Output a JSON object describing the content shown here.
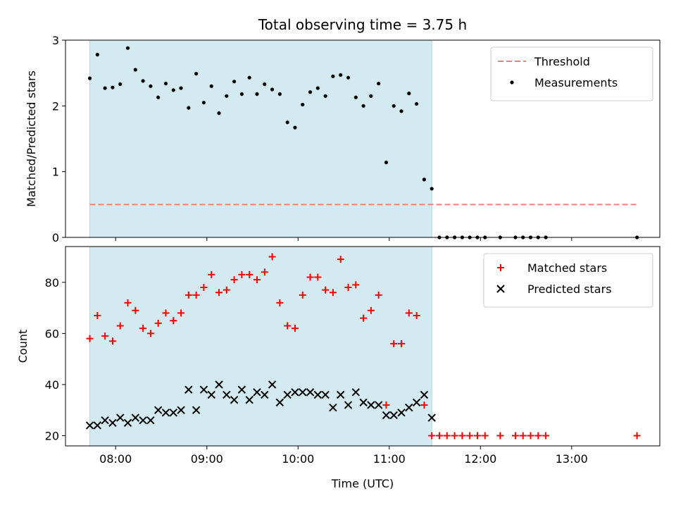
{
  "chart_data": [
    {
      "type": "scatter",
      "title": "Total observing time = 3.75 h",
      "ylabel": "Matched/Predicted stars",
      "xlim": [
        "07:27",
        "13:58"
      ],
      "ylim": [
        0,
        3
      ],
      "yticks": [
        "0",
        "1",
        "2",
        "3"
      ],
      "shaded_range": [
        "07:43",
        "11:28"
      ],
      "shade_color": "#d4eaf1",
      "legend_position": "top-right",
      "series": [
        {
          "name": "Threshold",
          "style": "dashed-line",
          "color": "#f08080",
          "x": [
            "07:43",
            "13:43"
          ],
          "y": [
            0.5,
            0.5
          ]
        },
        {
          "name": "Measurements",
          "style": "dot",
          "color": "#000000",
          "x": [
            "07:43",
            "07:48",
            "07:53",
            "07:58",
            "08:03",
            "08:08",
            "08:13",
            "08:18",
            "08:23",
            "08:28",
            "08:33",
            "08:38",
            "08:43",
            "08:48",
            "08:53",
            "08:58",
            "09:03",
            "09:08",
            "09:13",
            "09:18",
            "09:23",
            "09:28",
            "09:33",
            "09:38",
            "09:43",
            "09:48",
            "09:53",
            "09:58",
            "10:03",
            "10:08",
            "10:13",
            "10:18",
            "10:23",
            "10:28",
            "10:33",
            "10:38",
            "10:43",
            "10:48",
            "10:53",
            "10:58",
            "11:03",
            "11:08",
            "11:13",
            "11:18",
            "11:23",
            "11:28",
            "11:33",
            "11:38",
            "11:43",
            "11:48",
            "11:53",
            "11:58",
            "12:03",
            "12:13",
            "12:23",
            "12:28",
            "12:33",
            "12:38",
            "12:43",
            "13:43"
          ],
          "y": [
            2.42,
            2.78,
            2.27,
            2.28,
            2.33,
            2.88,
            2.55,
            2.38,
            2.3,
            2.13,
            2.34,
            2.24,
            2.27,
            1.97,
            2.49,
            2.05,
            2.3,
            1.89,
            2.15,
            2.37,
            2.18,
            2.43,
            2.18,
            2.33,
            2.25,
            2.18,
            1.75,
            1.67,
            2.02,
            2.21,
            2.27,
            2.15,
            2.45,
            2.47,
            2.43,
            2.13,
            2.0,
            2.15,
            2.34,
            1.14,
            2.0,
            1.92,
            2.19,
            2.03,
            0.88,
            0.74,
            0,
            0,
            0,
            0,
            0,
            0,
            0,
            0,
            0,
            0,
            0,
            0,
            0,
            0
          ]
        }
      ]
    },
    {
      "type": "scatter",
      "ylabel": "Count",
      "xlabel": "Time (UTC)",
      "xlim": [
        "07:27",
        "13:58"
      ],
      "ylim": [
        16,
        94
      ],
      "yticks": [
        "20",
        "40",
        "60",
        "80"
      ],
      "xticks": [
        "08:00",
        "09:00",
        "10:00",
        "11:00",
        "12:00",
        "13:00"
      ],
      "shaded_range": [
        "07:43",
        "11:28"
      ],
      "shade_color": "#d4eaf1",
      "legend_position": "top-right",
      "series": [
        {
          "name": "Matched stars",
          "marker": "plus",
          "color": "#ff0000",
          "x": [
            "07:43",
            "07:48",
            "07:53",
            "07:58",
            "08:03",
            "08:08",
            "08:13",
            "08:18",
            "08:23",
            "08:28",
            "08:33",
            "08:38",
            "08:43",
            "08:48",
            "08:53",
            "08:58",
            "09:03",
            "09:08",
            "09:13",
            "09:18",
            "09:23",
            "09:28",
            "09:33",
            "09:38",
            "09:43",
            "09:48",
            "09:53",
            "09:58",
            "10:03",
            "10:08",
            "10:13",
            "10:18",
            "10:23",
            "10:28",
            "10:33",
            "10:38",
            "10:43",
            "10:48",
            "10:53",
            "10:58",
            "11:03",
            "11:08",
            "11:13",
            "11:18",
            "11:23",
            "11:28",
            "11:33",
            "11:38",
            "11:43",
            "11:48",
            "11:53",
            "11:58",
            "12:03",
            "12:13",
            "12:23",
            "12:28",
            "12:33",
            "12:38",
            "12:43",
            "13:43"
          ],
          "y": [
            58,
            67,
            59,
            57,
            63,
            72,
            69,
            62,
            60,
            64,
            68,
            65,
            68,
            75,
            75,
            78,
            83,
            76,
            77,
            81,
            83,
            83,
            81,
            84,
            90,
            72,
            63,
            62,
            75,
            82,
            82,
            77,
            76,
            89,
            78,
            79,
            66,
            69,
            75,
            32,
            56,
            56,
            68,
            67,
            32,
            20,
            20,
            20,
            20,
            20,
            20,
            20,
            20,
            20,
            20,
            20,
            20,
            20,
            20,
            20
          ]
        },
        {
          "name": "Predicted stars",
          "marker": "x",
          "color": "#000000",
          "x": [
            "07:43",
            "07:48",
            "07:53",
            "07:58",
            "08:03",
            "08:08",
            "08:13",
            "08:18",
            "08:23",
            "08:28",
            "08:33",
            "08:38",
            "08:43",
            "08:48",
            "08:53",
            "08:58",
            "09:03",
            "09:08",
            "09:13",
            "09:18",
            "09:23",
            "09:28",
            "09:33",
            "09:38",
            "09:43",
            "09:48",
            "09:53",
            "09:58",
            "10:03",
            "10:08",
            "10:13",
            "10:18",
            "10:23",
            "10:28",
            "10:33",
            "10:38",
            "10:43",
            "10:48",
            "10:53",
            "10:58",
            "11:03",
            "11:08",
            "11:13",
            "11:18",
            "11:23",
            "11:28"
          ],
          "y": [
            24,
            24,
            26,
            25,
            27,
            25,
            27,
            26,
            26,
            30,
            29,
            29,
            30,
            38,
            30,
            38,
            36,
            40,
            36,
            34,
            38,
            34,
            37,
            36,
            40,
            33,
            36,
            37,
            37,
            37,
            36,
            36,
            31,
            36,
            32,
            37,
            33,
            32,
            32,
            28,
            28,
            29,
            31,
            33,
            36,
            27
          ]
        }
      ]
    }
  ]
}
